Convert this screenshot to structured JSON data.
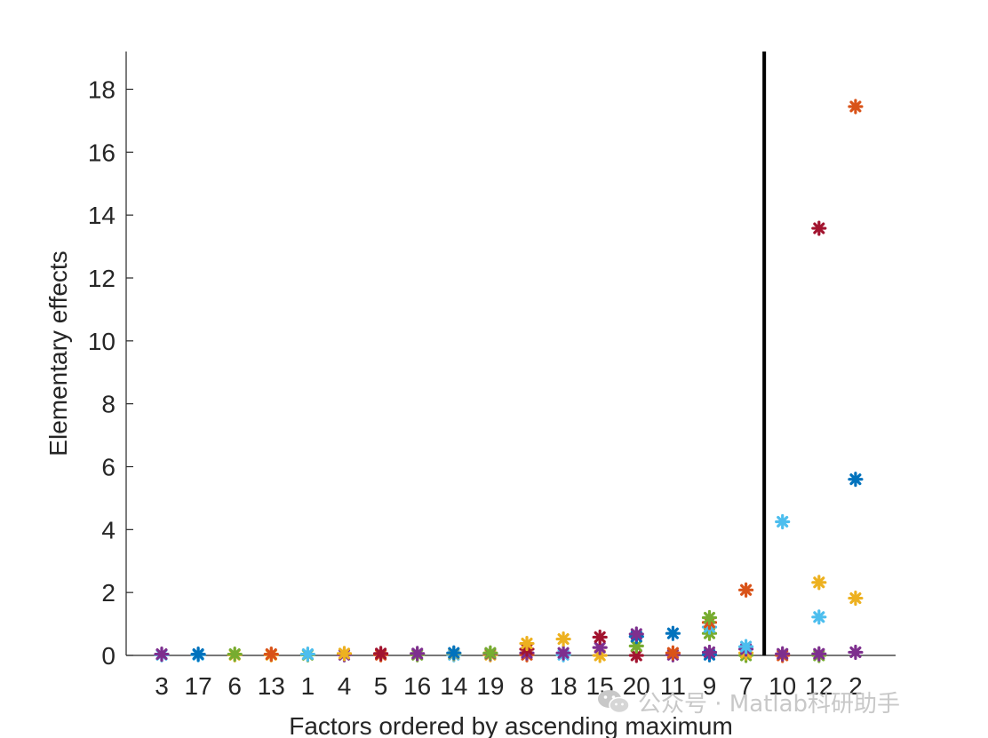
{
  "chart_data": {
    "type": "scatter",
    "xlabel": "Factors ordered by ascending maximum",
    "ylabel": "Elementary effects",
    "categories": [
      "3",
      "17",
      "6",
      "13",
      "1",
      "4",
      "5",
      "16",
      "14",
      "19",
      "8",
      "18",
      "15",
      "20",
      "11",
      "9",
      "7",
      "10",
      "12",
      "2"
    ],
    "ylim": [
      0,
      19.2
    ],
    "yticks": [
      0,
      2,
      4,
      6,
      8,
      10,
      12,
      14,
      16,
      18
    ],
    "grid": false,
    "legend": "none",
    "marker": "asterisk",
    "threshold_line_after_category": "7",
    "threshold_line_color": "#000000",
    "colors": [
      "#0072BD",
      "#D95319",
      "#EDB120",
      "#7E2F8E",
      "#77AC30",
      "#4DBEEE",
      "#A2142F"
    ],
    "points": [
      {
        "x": "3",
        "values": [
          0.02,
          0.04
        ],
        "colors": [
          "#4DBEEE",
          "#7E2F8E"
        ]
      },
      {
        "x": "17",
        "values": [
          0.02,
          0.04
        ],
        "colors": [
          "#4DBEEE",
          "#0072BD"
        ]
      },
      {
        "x": "6",
        "values": [
          0.02,
          0.04
        ],
        "colors": [
          "#EDB120",
          "#77AC30"
        ]
      },
      {
        "x": "13",
        "values": [
          0.02,
          0.04
        ],
        "colors": [
          "#EDB120",
          "#D95319"
        ]
      },
      {
        "x": "1",
        "values": [
          0.02,
          0.04
        ],
        "colors": [
          "#77AC30",
          "#4DBEEE"
        ]
      },
      {
        "x": "4",
        "values": [
          0.02,
          0.06
        ],
        "colors": [
          "#7E2F8E",
          "#EDB120"
        ]
      },
      {
        "x": "5",
        "values": [
          0.02,
          0.06
        ],
        "colors": [
          "#D95319",
          "#A2142F"
        ]
      },
      {
        "x": "16",
        "values": [
          0.02,
          0.06
        ],
        "colors": [
          "#77AC30",
          "#7E2F8E"
        ]
      },
      {
        "x": "14",
        "values": [
          0.02,
          0.06,
          0.08
        ],
        "colors": [
          "#4DBEEE",
          "#EDB120",
          "#0072BD"
        ]
      },
      {
        "x": "19",
        "values": [
          0.02,
          0.06,
          0.08
        ],
        "colors": [
          "#EDB120",
          "#7E2F8E",
          "#77AC30"
        ]
      },
      {
        "x": "8",
        "values": [
          0.02,
          0.08,
          0.2,
          0.38
        ],
        "colors": [
          "#D95319",
          "#7E2F8E",
          "#A2142F",
          "#EDB120"
        ]
      },
      {
        "x": "18",
        "values": [
          0.02,
          0.08,
          0.52
        ],
        "colors": [
          "#4DBEEE",
          "#7E2F8E",
          "#EDB120"
        ]
      },
      {
        "x": "15",
        "values": [
          0.0,
          0.25,
          0.58
        ],
        "colors": [
          "#EDB120",
          "#7E2F8E",
          "#A2142F"
        ]
      },
      {
        "x": "20",
        "values": [
          0.0,
          0.3,
          0.6,
          0.68
        ],
        "colors": [
          "#A2142F",
          "#77AC30",
          "#0072BD",
          "#7E2F8E"
        ]
      },
      {
        "x": "11",
        "values": [
          0.02,
          0.08,
          0.7
        ],
        "colors": [
          "#7E2F8E",
          "#D95319",
          "#0072BD"
        ]
      },
      {
        "x": "9",
        "values": [
          0.02,
          0.1,
          0.7,
          0.9,
          1.05,
          1.2
        ],
        "colors": [
          "#0072BD",
          "#7E2F8E",
          "#77AC30",
          "#4DBEEE",
          "#D95319",
          "#77AC30"
        ]
      },
      {
        "x": "7",
        "values": [
          0.0,
          0.08,
          0.2,
          0.28,
          2.08
        ],
        "colors": [
          "#77AC30",
          "#EDB120",
          "#7E2F8E",
          "#4DBEEE",
          "#D95319"
        ]
      },
      {
        "x": "10",
        "values": [
          0.0,
          0.05,
          4.25
        ],
        "colors": [
          "#D95319",
          "#7E2F8E",
          "#4DBEEE"
        ]
      },
      {
        "x": "12",
        "values": [
          0.0,
          0.05,
          1.22,
          2.32,
          13.58
        ],
        "colors": [
          "#77AC30",
          "#7E2F8E",
          "#4DBEEE",
          "#EDB120",
          "#A2142F"
        ]
      },
      {
        "x": "2",
        "values": [
          0.1,
          1.82,
          5.6,
          17.45
        ],
        "colors": [
          "#7E2F8E",
          "#EDB120",
          "#0072BD",
          "#D95319"
        ]
      }
    ]
  },
  "watermark": {
    "text": "公众号 · Matlab科研助手",
    "icon": "wechat-icon"
  }
}
